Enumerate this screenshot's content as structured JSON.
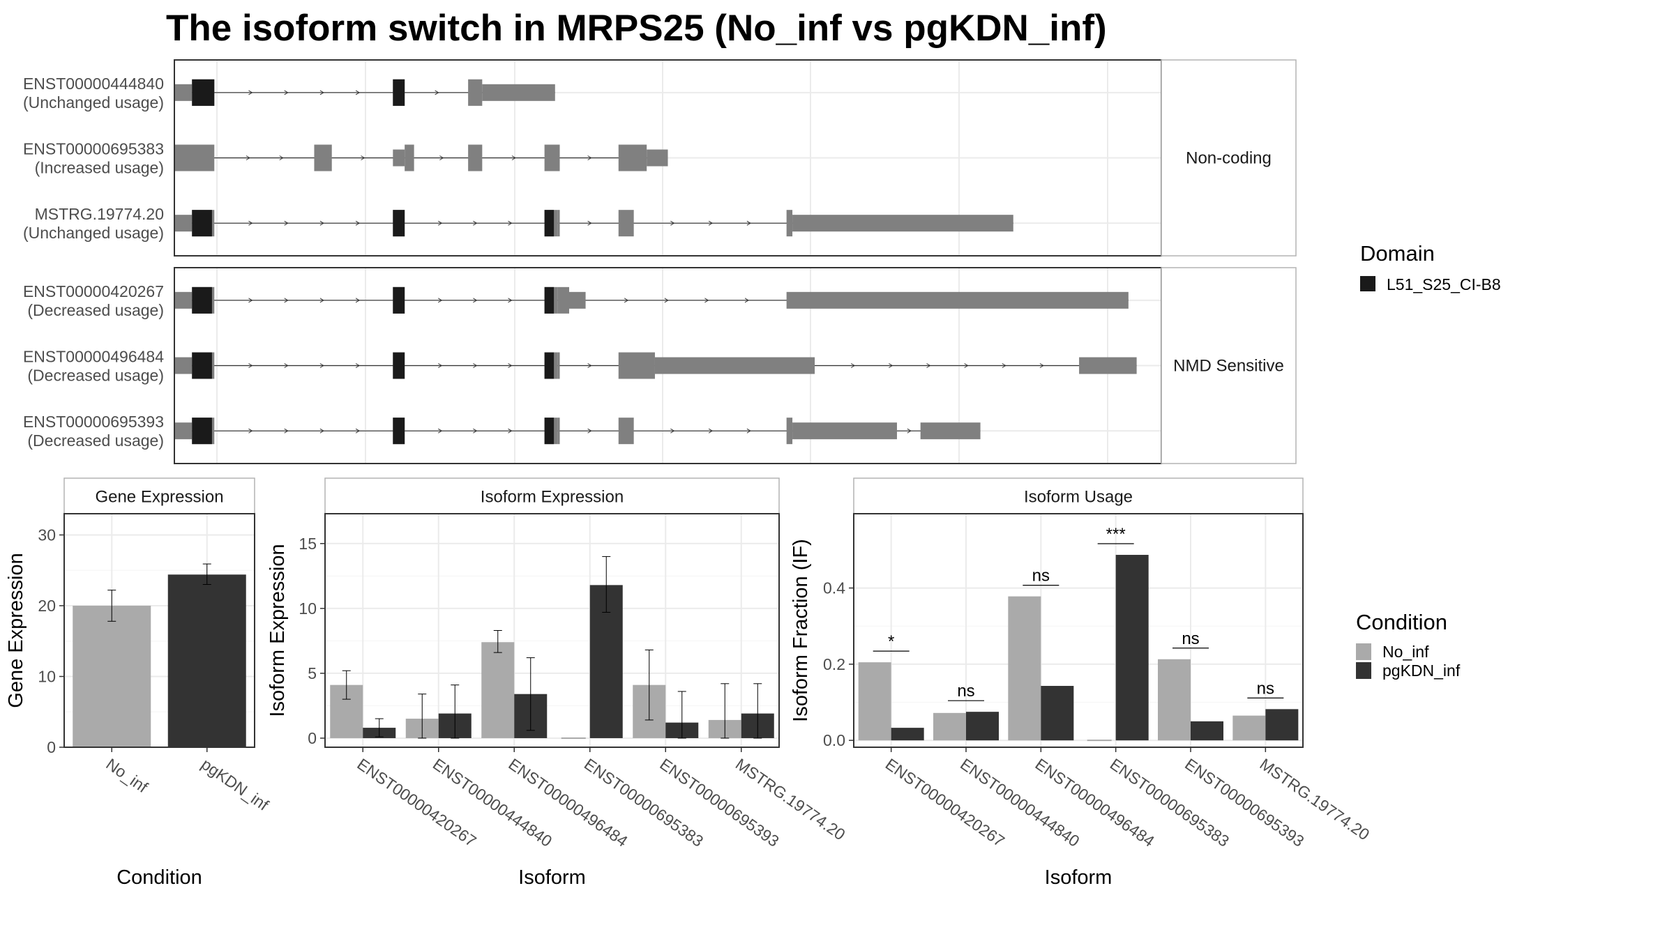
{
  "title": "The isoform switch in MRPS25 (No_inf vs pgKDN_inf)",
  "colors": {
    "exon": "#808080",
    "domain": "#1a1a1a",
    "no_inf": "#aaaaaa",
    "pgkdn_inf": "#333333",
    "grid": "#ebebeb",
    "strip_bg": "#ffffff",
    "border": "#333333"
  },
  "legend_domain": {
    "title": "Domain",
    "items": [
      "L51_S25_CI-B8"
    ]
  },
  "legend_condition": {
    "title": "Condition",
    "items": [
      "No_inf",
      "pgKDN_inf"
    ]
  },
  "chart_data": [
    {
      "type": "transcript_structure",
      "groups": [
        {
          "label": "Non-coding",
          "transcripts": [
            {
              "id": "ENST00000444840",
              "usage": "(Unchanged usage)",
              "exons": [
                [
                  0,
                  150,
                  "t"
                ],
                [
                  150,
                  340,
                  "c"
                ],
                [
                  1860,
                  1960,
                  "c"
                ],
                [
                  2500,
                  2620,
                  "c"
                ],
                [
                  2620,
                  3240,
                  "t"
                ]
              ],
              "domains": [
                [
                  150,
                  340
                ],
                [
                  1860,
                  1960
                ]
              ]
            },
            {
              "id": "ENST00000695383",
              "usage": "(Increased usage)",
              "exons": [
                [
                  0,
                  340,
                  "c"
                ],
                [
                  1190,
                  1340,
                  "c"
                ],
                [
                  1860,
                  1960,
                  "t"
                ],
                [
                  1960,
                  2040,
                  "c"
                ],
                [
                  2500,
                  2620,
                  "c"
                ],
                [
                  3150,
                  3280,
                  "c"
                ],
                [
                  3780,
                  4020,
                  "c"
                ],
                [
                  4020,
                  4200,
                  "t"
                ]
              ],
              "domains": []
            },
            {
              "id": "MSTRG.19774.20",
              "usage": "(Unchanged usage)",
              "exons": [
                [
                  0,
                  150,
                  "t"
                ],
                [
                  150,
                  340,
                  "c"
                ],
                [
                  1860,
                  1960,
                  "c"
                ],
                [
                  3150,
                  3260,
                  "c"
                ],
                [
                  3260,
                  3280,
                  "c"
                ],
                [
                  3780,
                  3910,
                  "c"
                ],
                [
                  5210,
                  5260,
                  "c"
                ],
                [
                  5260,
                  7140,
                  "t"
                ]
              ],
              "domains": [
                [
                  150,
                  320
                ],
                [
                  1860,
                  1960
                ],
                [
                  3150,
                  3230
                ]
              ]
            }
          ]
        },
        {
          "label": "NMD Sensitive",
          "transcripts": [
            {
              "id": "ENST00000420267",
              "usage": "(Decreased usage)",
              "exons": [
                [
                  0,
                  150,
                  "t"
                ],
                [
                  150,
                  340,
                  "c"
                ],
                [
                  1860,
                  1960,
                  "c"
                ],
                [
                  3150,
                  3260,
                  "c"
                ],
                [
                  3260,
                  3360,
                  "c"
                ],
                [
                  3360,
                  3500,
                  "t"
                ],
                [
                  5210,
                  8120,
                  "t"
                ]
              ],
              "domains": [
                [
                  150,
                  320
                ],
                [
                  1860,
                  1960
                ],
                [
                  3150,
                  3230
                ]
              ]
            },
            {
              "id": "ENST00000496484",
              "usage": "(Decreased usage)",
              "exons": [
                [
                  0,
                  150,
                  "t"
                ],
                [
                  150,
                  340,
                  "c"
                ],
                [
                  1860,
                  1960,
                  "c"
                ],
                [
                  3150,
                  3260,
                  "c"
                ],
                [
                  3260,
                  3280,
                  "c"
                ],
                [
                  3780,
                  4090,
                  "c"
                ],
                [
                  4090,
                  5450,
                  "t"
                ],
                [
                  7700,
                  8190,
                  "t"
                ]
              ],
              "domains": [
                [
                  150,
                  320
                ],
                [
                  1860,
                  1960
                ],
                [
                  3150,
                  3230
                ]
              ]
            },
            {
              "id": "ENST00000695393",
              "usage": "(Decreased usage)",
              "exons": [
                [
                  0,
                  150,
                  "t"
                ],
                [
                  150,
                  340,
                  "c"
                ],
                [
                  1860,
                  1960,
                  "c"
                ],
                [
                  3150,
                  3260,
                  "c"
                ],
                [
                  3260,
                  3280,
                  "c"
                ],
                [
                  3780,
                  3910,
                  "c"
                ],
                [
                  5210,
                  5260,
                  "c"
                ],
                [
                  5260,
                  6150,
                  "t"
                ],
                [
                  6350,
                  6860,
                  "t"
                ]
              ],
              "domains": [
                [
                  150,
                  320
                ],
                [
                  1860,
                  1960
                ],
                [
                  3150,
                  3230
                ]
              ]
            }
          ]
        }
      ]
    },
    {
      "type": "bar",
      "title": "Gene Expression",
      "xlabel": "Condition",
      "ylabel": "Gene Expression",
      "categories": [
        "No_inf",
        "pgKDN_inf"
      ],
      "values": [
        20.0,
        24.4
      ],
      "errors": [
        [
          17.8,
          22.2
        ],
        [
          23.0,
          25.9
        ]
      ],
      "ylim": [
        0,
        33
      ],
      "yticks": [
        0,
        10,
        20,
        30
      ]
    },
    {
      "type": "bar",
      "title": "Isoform Expression",
      "xlabel": "Isoform",
      "ylabel": "Isoform Expression",
      "categories": [
        "ENST00000420267",
        "ENST00000444840",
        "ENST00000496484",
        "ENST00000695383",
        "ENST00000695393",
        "MSTRG.19774.20"
      ],
      "series": [
        {
          "name": "No_inf",
          "values": [
            4.1,
            1.5,
            7.4,
            0.0,
            4.1,
            1.4
          ],
          "errors": [
            [
              3.0,
              5.2
            ],
            [
              0.0,
              3.4
            ],
            [
              6.6,
              8.3
            ],
            [
              0.0,
              0.0
            ],
            [
              1.4,
              6.8
            ],
            [
              0.0,
              4.2
            ]
          ]
        },
        {
          "name": "pgKDN_inf",
          "values": [
            0.8,
            1.9,
            3.4,
            11.8,
            1.2,
            1.9
          ],
          "errors": [
            [
              0.1,
              1.5
            ],
            [
              0.0,
              4.1
            ],
            [
              0.6,
              6.2
            ],
            [
              9.7,
              14.0
            ],
            [
              0.0,
              3.6
            ],
            [
              0.0,
              4.2
            ]
          ]
        }
      ],
      "ylim": [
        -0.7,
        17.3
      ],
      "yticks": [
        0,
        5,
        10,
        15
      ]
    },
    {
      "type": "bar",
      "title": "Isoform Usage",
      "xlabel": "Isoform",
      "ylabel": "Isoform Fraction (IF)",
      "categories": [
        "ENST00000420267",
        "ENST00000444840",
        "ENST00000496484",
        "ENST00000695383",
        "ENST00000695393",
        "MSTRG.19774.20"
      ],
      "series": [
        {
          "name": "No_inf",
          "values": [
            0.205,
            0.072,
            0.378,
            0.0,
            0.213,
            0.065
          ]
        },
        {
          "name": "pgKDN_inf",
          "values": [
            0.033,
            0.075,
            0.143,
            0.487,
            0.05,
            0.082
          ]
        }
      ],
      "significance": [
        "*",
        "ns",
        "ns",
        "***",
        "ns",
        "ns"
      ],
      "ylim": [
        -0.018,
        0.595
      ],
      "yticks": [
        0.0,
        0.2,
        0.4
      ]
    }
  ]
}
